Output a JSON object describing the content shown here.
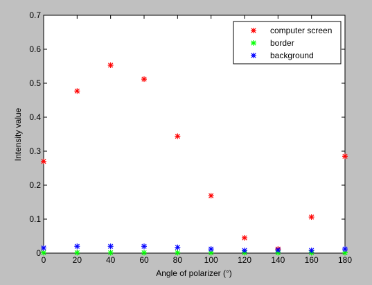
{
  "chart_data": {
    "type": "scatter",
    "title": "",
    "xlabel": "Angle of polarizer (°)",
    "ylabel": "Intensity value",
    "xlim": [
      0,
      180
    ],
    "ylim": [
      0,
      0.7
    ],
    "xticks": [
      0,
      20,
      40,
      60,
      80,
      100,
      120,
      140,
      160,
      180
    ],
    "yticks": [
      0,
      0.1,
      0.2,
      0.3,
      0.4,
      0.5,
      0.6,
      0.7
    ],
    "xtick_labels": [
      "0",
      "20",
      "40",
      "60",
      "80",
      "100",
      "120",
      "140",
      "160",
      "180"
    ],
    "ytick_labels": [
      "0",
      "0.1",
      "0.2",
      "0.3",
      "0.4",
      "0.5",
      "0.6",
      "0.7"
    ],
    "grid": false,
    "legend_position": "top-right",
    "marker": "*",
    "x": [
      0,
      20,
      40,
      60,
      80,
      100,
      120,
      140,
      160,
      180
    ],
    "series": [
      {
        "name": "computer screen",
        "color": "#ff0000",
        "values": [
          0.27,
          0.477,
          0.553,
          0.512,
          0.344,
          0.169,
          0.045,
          0.012,
          0.106,
          0.285
        ]
      },
      {
        "name": "border",
        "color": "#00ff00",
        "values": [
          0.001,
          0.001,
          0.001,
          0.001,
          0.001,
          0.001,
          0.001,
          0.001,
          0.001,
          0.001
        ]
      },
      {
        "name": "background",
        "color": "#0000ff",
        "values": [
          0.015,
          0.02,
          0.02,
          0.02,
          0.017,
          0.012,
          0.008,
          0.009,
          0.008,
          0.012
        ]
      }
    ]
  }
}
